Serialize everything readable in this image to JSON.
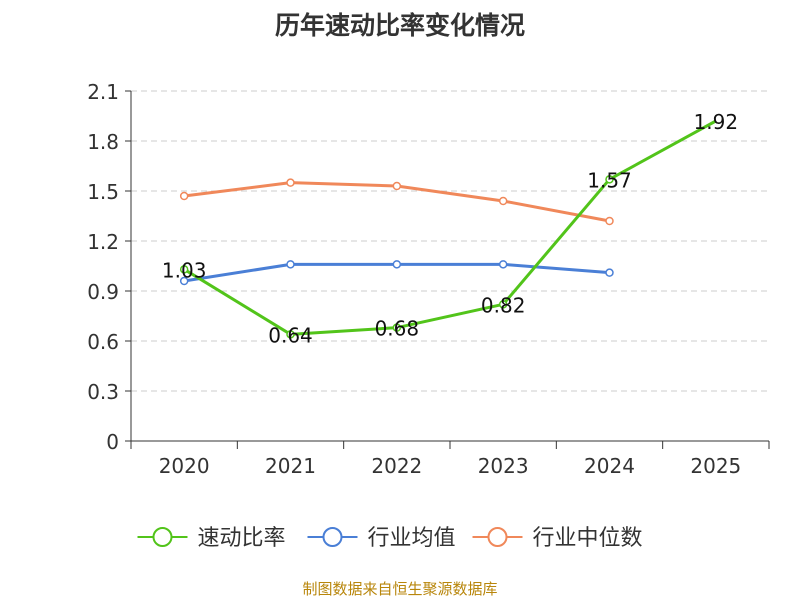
{
  "chart_data": {
    "type": "line",
    "title": "历年速动比率变化情况",
    "categories": [
      "2020",
      "2021",
      "2022",
      "2023",
      "2024",
      "2025"
    ],
    "ylim": [
      0,
      2.1
    ],
    "yticks": [
      "0",
      "0.3",
      "0.6",
      "0.9",
      "1.2",
      "1.5",
      "1.8",
      "2.1"
    ],
    "grid": true,
    "legend_position": "bottom",
    "series": [
      {
        "name": "速动比率",
        "color": "#52c41a",
        "values": [
          1.03,
          0.64,
          0.68,
          0.82,
          1.57,
          1.92
        ],
        "labels": [
          "1.03",
          "0.64",
          "0.68",
          "0.82",
          "1.57",
          "1.92"
        ]
      },
      {
        "name": "行业均值",
        "color": "#4a7fd6",
        "values": [
          0.96,
          1.06,
          1.06,
          1.06,
          1.01,
          null
        ]
      },
      {
        "name": "行业中位数",
        "color": "#f0885a",
        "values": [
          1.47,
          1.55,
          1.53,
          1.44,
          1.32,
          null
        ]
      }
    ],
    "source": "制图数据来自恒生聚源数据库"
  }
}
